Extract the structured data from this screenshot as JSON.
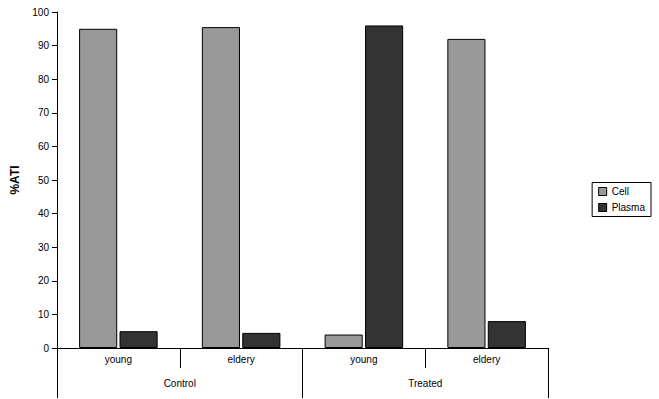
{
  "chart_data": {
    "type": "bar",
    "categories": [
      "young",
      "eldery",
      "young",
      "eldery"
    ],
    "groups": [
      "Control",
      "Treated"
    ],
    "y_label": "%ATI",
    "series": [
      {
        "name": "Cell",
        "color": "#999999",
        "values": [
          95,
          95.5,
          4,
          92
        ]
      },
      {
        "name": "Plasma",
        "color": "#333333",
        "values": [
          5,
          4.5,
          96,
          8
        ]
      }
    ],
    "ylim": [
      0,
      100
    ],
    "yticks": [
      0,
      10,
      20,
      30,
      40,
      50,
      60,
      70,
      80,
      90,
      100
    ],
    "grid": false,
    "legend": "right"
  }
}
